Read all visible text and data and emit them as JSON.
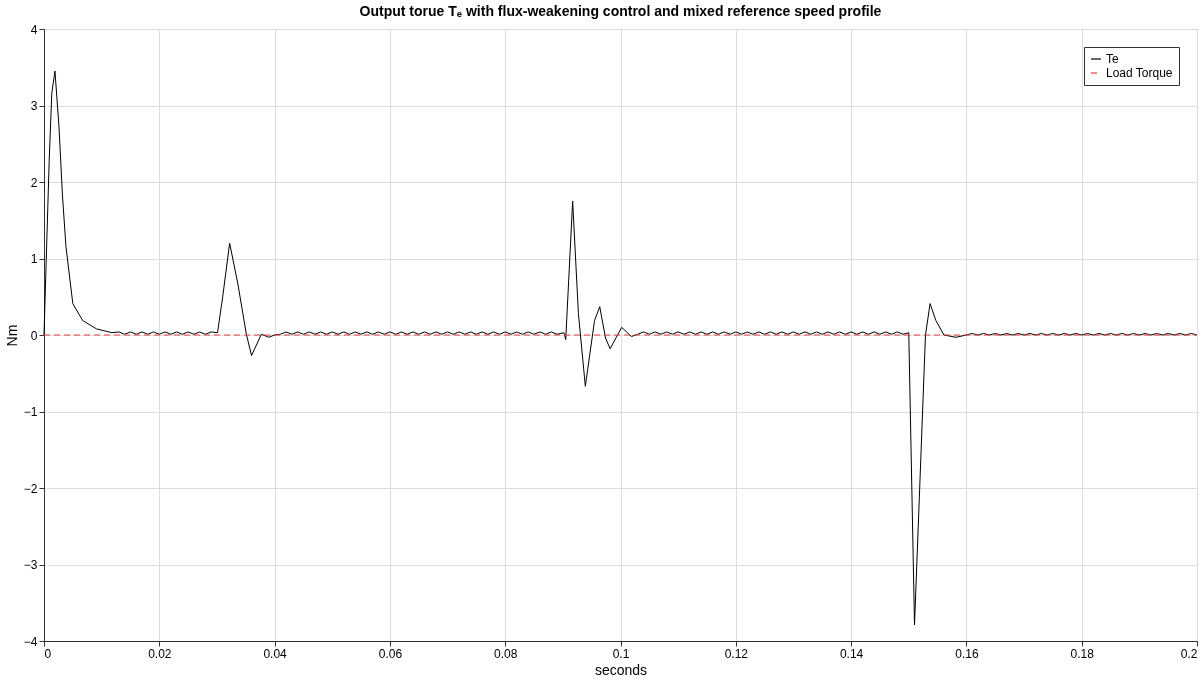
{
  "chart_data": {
    "type": "line",
    "title": "Output torue Tₑ with flux-weakening control and mixed reference speed profile",
    "xlabel": "seconds",
    "ylabel": "Nm",
    "xlim": [
      0,
      0.2
    ],
    "xticks": [
      0,
      0.02,
      0.04,
      0.06,
      0.08,
      0.1,
      0.12,
      0.14,
      0.16,
      0.18,
      0.2
    ],
    "ylim": [
      -4,
      4
    ],
    "yticks": [
      -4,
      -3,
      -2,
      -1,
      0,
      1,
      2,
      3,
      4
    ],
    "grid": true,
    "legend": "top right",
    "marker": "none",
    "series": [
      {
        "name": "Te",
        "color": "#000000",
        "line_style": "solid",
        "x": [
          0,
          0.0009,
          0.00135,
          0.0019,
          0.0026,
          0.0032,
          0.0038,
          0.005,
          0.0067,
          0.0091,
          0.0118,
          0.013,
          0.014,
          0.015,
          0.016,
          0.017,
          0.018,
          0.019,
          0.02,
          0.021,
          0.022,
          0.023,
          0.024,
          0.025,
          0.026,
          0.027,
          0.028,
          0.029,
          0.0301,
          0.031,
          0.0322,
          0.0336,
          0.0351,
          0.036,
          0.0377,
          0.039,
          0.04,
          0.041,
          0.042,
          0.043,
          0.044,
          0.045,
          0.046,
          0.047,
          0.048,
          0.049,
          0.05,
          0.051,
          0.052,
          0.053,
          0.054,
          0.055,
          0.056,
          0.057,
          0.058,
          0.059,
          0.06,
          0.061,
          0.062,
          0.063,
          0.064,
          0.065,
          0.066,
          0.067,
          0.068,
          0.069,
          0.07,
          0.071,
          0.072,
          0.073,
          0.074,
          0.075,
          0.076,
          0.077,
          0.078,
          0.079,
          0.08,
          0.081,
          0.082,
          0.083,
          0.084,
          0.085,
          0.086,
          0.087,
          0.088,
          0.089,
          0.0902,
          0.0905,
          0.0917,
          0.0927,
          0.0939,
          0.0955,
          0.0964,
          0.0974,
          0.0982,
          0.1002,
          0.1019,
          0.103,
          0.104,
          0.105,
          0.106,
          0.107,
          0.108,
          0.109,
          0.11,
          0.111,
          0.112,
          0.113,
          0.114,
          0.115,
          0.116,
          0.117,
          0.118,
          0.119,
          0.12,
          0.121,
          0.122,
          0.123,
          0.124,
          0.125,
          0.126,
          0.127,
          0.128,
          0.129,
          0.13,
          0.131,
          0.132,
          0.133,
          0.134,
          0.135,
          0.136,
          0.137,
          0.138,
          0.139,
          0.14,
          0.141,
          0.142,
          0.143,
          0.144,
          0.145,
          0.146,
          0.147,
          0.148,
          0.149,
          0.15,
          0.151,
          0.1529,
          0.1537,
          0.1547,
          0.1561,
          0.1582,
          0.16,
          0.161,
          0.162,
          0.163,
          0.164,
          0.165,
          0.166,
          0.167,
          0.168,
          0.169,
          0.17,
          0.171,
          0.172,
          0.173,
          0.174,
          0.175,
          0.176,
          0.177,
          0.178,
          0.179,
          0.18,
          0.181,
          0.182,
          0.183,
          0.184,
          0.185,
          0.186,
          0.187,
          0.188,
          0.189,
          0.19,
          0.191,
          0.192,
          0.193,
          0.194,
          0.195,
          0.196,
          0.197,
          0.198,
          0.199,
          0.2
        ],
        "values": [
          0,
          2.28,
          3.16,
          3.45,
          2.72,
          1.83,
          1.16,
          0.41,
          0.19,
          0.08,
          0.03,
          0.04,
          0.01,
          0.04,
          0.01,
          0.04,
          0.01,
          0.04,
          0.01,
          0.04,
          0.01,
          0.04,
          0.01,
          0.04,
          0.01,
          0.04,
          0.01,
          0.04,
          0.03,
          0.5,
          1.2,
          0.68,
          0.01,
          -0.27,
          0.01,
          -0.03,
          0,
          0.01,
          0.04,
          0.01,
          0.04,
          0.01,
          0.04,
          0.01,
          0.04,
          0.01,
          0.04,
          0.01,
          0.04,
          0.01,
          0.04,
          0.01,
          0.04,
          0.01,
          0.04,
          0.01,
          0.04,
          0.01,
          0.04,
          0.01,
          0.04,
          0.01,
          0.04,
          0.01,
          0.04,
          0.01,
          0.04,
          0.01,
          0.04,
          0.01,
          0.04,
          0.01,
          0.04,
          0.01,
          0.04,
          0.01,
          0.04,
          0.01,
          0.04,
          0.01,
          0.04,
          0.01,
          0.04,
          0.01,
          0.04,
          0.01,
          0.03,
          -0.06,
          1.75,
          0.28,
          -0.67,
          0.19,
          0.37,
          -0.04,
          -0.18,
          0.1,
          -0.02,
          0.01,
          0.04,
          0.01,
          0.04,
          0.01,
          0.04,
          0.01,
          0.04,
          0.01,
          0.04,
          0.01,
          0.04,
          0.01,
          0.04,
          0.01,
          0.04,
          0.01,
          0.04,
          0.01,
          0.04,
          0.01,
          0.04,
          0.01,
          0.04,
          0.01,
          0.04,
          0.01,
          0.04,
          0.01,
          0.04,
          0.01,
          0.04,
          0.01,
          0.04,
          0.01,
          0.04,
          0.01,
          0.04,
          0.01,
          0.04,
          0.01,
          0.04,
          0.01,
          0.04,
          0.01,
          0.04,
          0.01,
          0.03,
          -3.79,
          0,
          0.41,
          0.19,
          0,
          -0.03,
          0,
          0.02,
          0,
          0.02,
          0,
          0.02,
          0,
          0.02,
          0,
          0.02,
          0,
          0.02,
          0,
          0.02,
          0,
          0.02,
          0,
          0.02,
          0,
          0.02,
          0,
          0.02,
          0,
          0.02,
          0,
          0.02,
          0,
          0.02,
          0,
          0.02,
          0,
          0.02,
          0,
          0.02,
          0,
          0.02,
          0,
          0.02,
          0,
          0.02,
          0
        ]
      },
      {
        "name": "Load Torque",
        "color": "#e8413c",
        "line_style": "dashed",
        "x": [
          0,
          0.2
        ],
        "values": [
          0,
          0
        ]
      }
    ]
  }
}
